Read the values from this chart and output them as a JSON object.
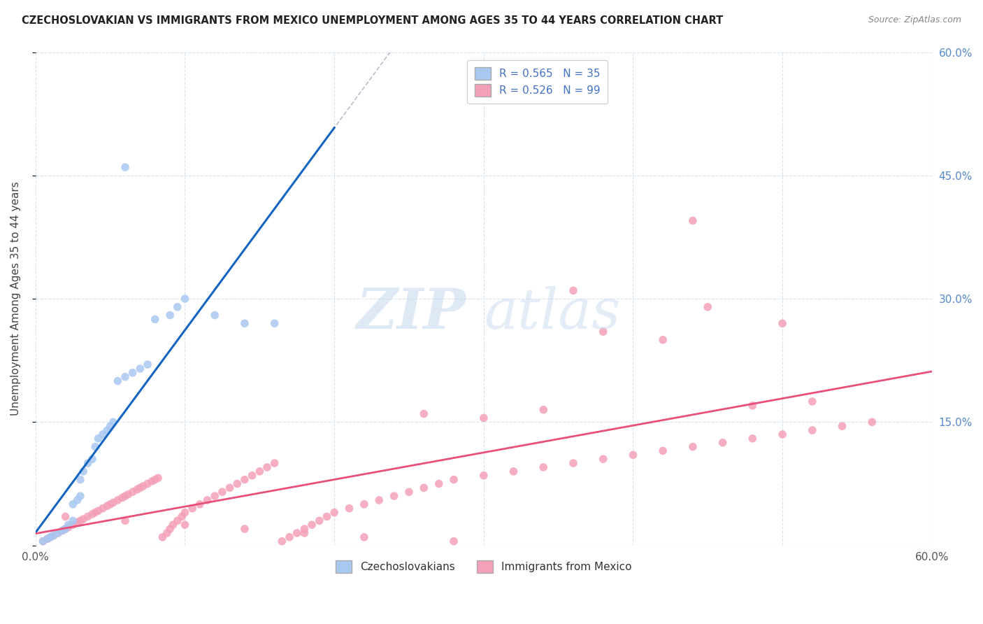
{
  "title": "CZECHOSLOVAKIAN VS IMMIGRANTS FROM MEXICO UNEMPLOYMENT AMONG AGES 35 TO 44 YEARS CORRELATION CHART",
  "source": "Source: ZipAtlas.com",
  "ylabel": "Unemployment Among Ages 35 to 44 years",
  "xmin": 0.0,
  "xmax": 0.6,
  "ymin": 0.0,
  "ymax": 0.6,
  "blue_color": "#A8C8F0",
  "blue_edge_color": "#7AAAD8",
  "pink_color": "#F4A0B8",
  "pink_edge_color": "#E07090",
  "blue_line_color": "#1565C0",
  "pink_line_color": "#E8507A",
  "gray_dash_color": "#BBBBCC",
  "r_blue": 0.565,
  "n_blue": 35,
  "r_pink": 0.526,
  "n_pink": 99,
  "legend_labels": [
    "Czechoslovakians",
    "Immigrants from Mexico"
  ],
  "watermark_zip": "ZIP",
  "watermark_atlas": "atlas",
  "blue_x": [
    0.005,
    0.008,
    0.01,
    0.012,
    0.015,
    0.018,
    0.02,
    0.022,
    0.025,
    0.025,
    0.028,
    0.03,
    0.03,
    0.032,
    0.035,
    0.038,
    0.04,
    0.042,
    0.045,
    0.048,
    0.05,
    0.052,
    0.055,
    0.06,
    0.065,
    0.07,
    0.075,
    0.08,
    0.09,
    0.095,
    0.1,
    0.12,
    0.14,
    0.16,
    0.06
  ],
  "blue_y": [
    0.005,
    0.008,
    0.01,
    0.012,
    0.015,
    0.018,
    0.02,
    0.025,
    0.03,
    0.05,
    0.055,
    0.06,
    0.08,
    0.09,
    0.1,
    0.105,
    0.12,
    0.13,
    0.135,
    0.14,
    0.145,
    0.15,
    0.2,
    0.205,
    0.21,
    0.215,
    0.22,
    0.275,
    0.28,
    0.29,
    0.3,
    0.28,
    0.27,
    0.27,
    0.46
  ],
  "pink_x": [
    0.005,
    0.008,
    0.01,
    0.012,
    0.015,
    0.018,
    0.02,
    0.022,
    0.025,
    0.028,
    0.03,
    0.032,
    0.035,
    0.038,
    0.04,
    0.042,
    0.045,
    0.048,
    0.05,
    0.052,
    0.055,
    0.058,
    0.06,
    0.062,
    0.065,
    0.068,
    0.07,
    0.072,
    0.075,
    0.078,
    0.08,
    0.082,
    0.085,
    0.088,
    0.09,
    0.092,
    0.095,
    0.098,
    0.1,
    0.105,
    0.11,
    0.115,
    0.12,
    0.125,
    0.13,
    0.135,
    0.14,
    0.145,
    0.15,
    0.155,
    0.16,
    0.165,
    0.17,
    0.175,
    0.18,
    0.185,
    0.19,
    0.195,
    0.2,
    0.21,
    0.22,
    0.23,
    0.24,
    0.25,
    0.26,
    0.27,
    0.28,
    0.3,
    0.32,
    0.34,
    0.36,
    0.38,
    0.4,
    0.42,
    0.44,
    0.46,
    0.48,
    0.5,
    0.52,
    0.54,
    0.56,
    0.45,
    0.5,
    0.38,
    0.42,
    0.3,
    0.26,
    0.34,
    0.48,
    0.52,
    0.44,
    0.36,
    0.28,
    0.22,
    0.18,
    0.14,
    0.1,
    0.06,
    0.02
  ],
  "pink_y": [
    0.005,
    0.008,
    0.01,
    0.012,
    0.015,
    0.018,
    0.02,
    0.022,
    0.025,
    0.028,
    0.03,
    0.032,
    0.035,
    0.038,
    0.04,
    0.042,
    0.045,
    0.048,
    0.05,
    0.052,
    0.055,
    0.058,
    0.06,
    0.062,
    0.065,
    0.068,
    0.07,
    0.072,
    0.075,
    0.078,
    0.08,
    0.082,
    0.01,
    0.015,
    0.02,
    0.025,
    0.03,
    0.035,
    0.04,
    0.045,
    0.05,
    0.055,
    0.06,
    0.065,
    0.07,
    0.075,
    0.08,
    0.085,
    0.09,
    0.095,
    0.1,
    0.005,
    0.01,
    0.015,
    0.02,
    0.025,
    0.03,
    0.035,
    0.04,
    0.045,
    0.05,
    0.055,
    0.06,
    0.065,
    0.07,
    0.075,
    0.08,
    0.085,
    0.09,
    0.095,
    0.1,
    0.105,
    0.11,
    0.115,
    0.12,
    0.125,
    0.13,
    0.135,
    0.14,
    0.145,
    0.15,
    0.29,
    0.27,
    0.26,
    0.25,
    0.155,
    0.16,
    0.165,
    0.17,
    0.175,
    0.395,
    0.31,
    0.005,
    0.01,
    0.015,
    0.02,
    0.025,
    0.03,
    0.035
  ]
}
